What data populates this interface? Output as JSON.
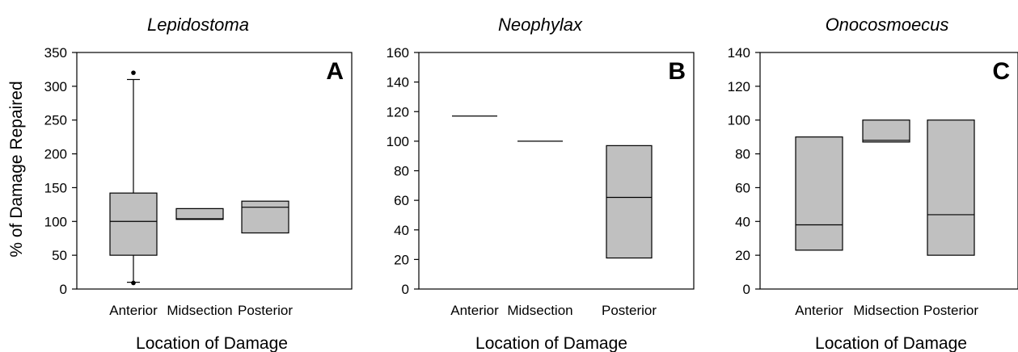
{
  "chart_data": [
    {
      "type": "box",
      "title": "Lepidostoma",
      "panel_label": "A",
      "ylabel": "% of Damage Repaired",
      "xlabel": "Location of Damage",
      "ylim": [
        0,
        350
      ],
      "yticks": [
        0,
        50,
        100,
        150,
        200,
        250,
        300,
        350
      ],
      "categories": [
        "Anterior",
        "Midsection",
        "Posterior"
      ],
      "box_color": "#c0c0c0",
      "boxes": [
        {
          "category": "Anterior",
          "q1": 50,
          "median": 100,
          "q3": 142,
          "whisker_low": 10,
          "whisker_high": 310,
          "outliers": [
            9,
            320
          ]
        },
        {
          "category": "Midsection",
          "q1": 103,
          "median": 104,
          "q3": 119
        },
        {
          "category": "Posterior",
          "q1": 83,
          "median": 121,
          "q3": 130
        }
      ]
    },
    {
      "type": "box",
      "title": "Neophylax",
      "panel_label": "B",
      "ylabel": "",
      "xlabel": "Location of Damage",
      "ylim": [
        0,
        160
      ],
      "yticks": [
        0,
        20,
        40,
        60,
        80,
        100,
        120,
        140,
        160
      ],
      "categories": [
        "Anterior",
        "Midsection",
        "Posterior"
      ],
      "box_color": "#c0c0c0",
      "boxes": [
        {
          "category": "Anterior",
          "q1": 117,
          "median": 117,
          "q3": 117
        },
        {
          "category": "Midsection",
          "q1": 100,
          "median": 100,
          "q3": 100
        },
        {
          "category": "Posterior",
          "q1": 21,
          "median": 62,
          "q3": 97
        }
      ]
    },
    {
      "type": "box",
      "title": "Onocosmoecus",
      "panel_label": "C",
      "ylabel": "",
      "xlabel": "Location of Damage",
      "ylim": [
        0,
        140
      ],
      "yticks": [
        0,
        20,
        40,
        60,
        80,
        100,
        120,
        140
      ],
      "categories": [
        "Anterior",
        "Midsection",
        "Posterior"
      ],
      "box_color": "#c0c0c0",
      "boxes": [
        {
          "category": "Anterior",
          "q1": 23,
          "median": 38,
          "q3": 90
        },
        {
          "category": "Midsection",
          "q1": 87,
          "median": 88,
          "q3": 100
        },
        {
          "category": "Posterior",
          "q1": 20,
          "median": 44,
          "q3": 100
        }
      ]
    }
  ]
}
